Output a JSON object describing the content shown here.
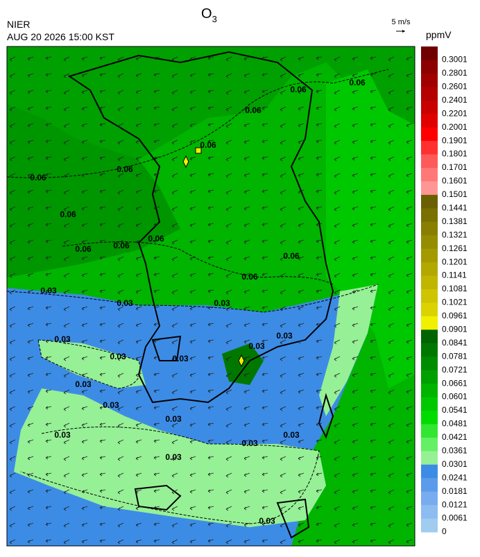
{
  "header": {
    "title": "O",
    "title_subscript": "3",
    "agency": "NIER",
    "timestamp": "AUG 20 2026 15:00 KST",
    "wind_scale": "5 m/s"
  },
  "colorbar": {
    "unit": "ppmV",
    "labels": [
      "0.3001",
      "0.2801",
      "0.2601",
      "0.2401",
      "0.2201",
      "0.2001",
      "0.1901",
      "0.1801",
      "0.1701",
      "0.1601",
      "0.1501",
      "0.1441",
      "0.1381",
      "0.1321",
      "0.1261",
      "0.1201",
      "0.1141",
      "0.1081",
      "0.1021",
      "0.0961",
      "0.0901",
      "0.0841",
      "0.0781",
      "0.0721",
      "0.0661",
      "0.0601",
      "0.0541",
      "0.0481",
      "0.0421",
      "0.0361",
      "0.0301",
      "0.0241",
      "0.0181",
      "0.0121",
      "0.0061",
      "0"
    ],
    "colors": [
      "#700000",
      "#8c0000",
      "#a00000",
      "#b40000",
      "#c80000",
      "#e10000",
      "#ff0000",
      "#ff3030",
      "#ff5a5a",
      "#ff7878",
      "#ff9696",
      "#6b6000",
      "#7a7000",
      "#887e00",
      "#968c00",
      "#a49a00",
      "#b2a800",
      "#c0b600",
      "#cec400",
      "#dcd200",
      "#f0f000",
      "#006400",
      "#007800",
      "#008c00",
      "#00a000",
      "#00b400",
      "#00c800",
      "#00dc00",
      "#32e632",
      "#64f064",
      "#96f096",
      "#3c8ce6",
      "#5a9ceb",
      "#78acee",
      "#8cbcf0",
      "#a0ccf0"
    ]
  },
  "map": {
    "contour_labels": [
      "0.06",
      "0.06",
      "0.06",
      "0.06",
      "0.06",
      "0.06",
      "0.06",
      "0.06",
      "0.06",
      "0.06",
      "0.06",
      "0.06",
      "0.03",
      "0.03",
      "0.03",
      "0.03",
      "0.03",
      "0.03",
      "0.03",
      "0.03",
      "0.03",
      "0.03",
      "0.03",
      "0.03",
      "0.03",
      "0.03",
      "0.03",
      "0.03"
    ]
  }
}
